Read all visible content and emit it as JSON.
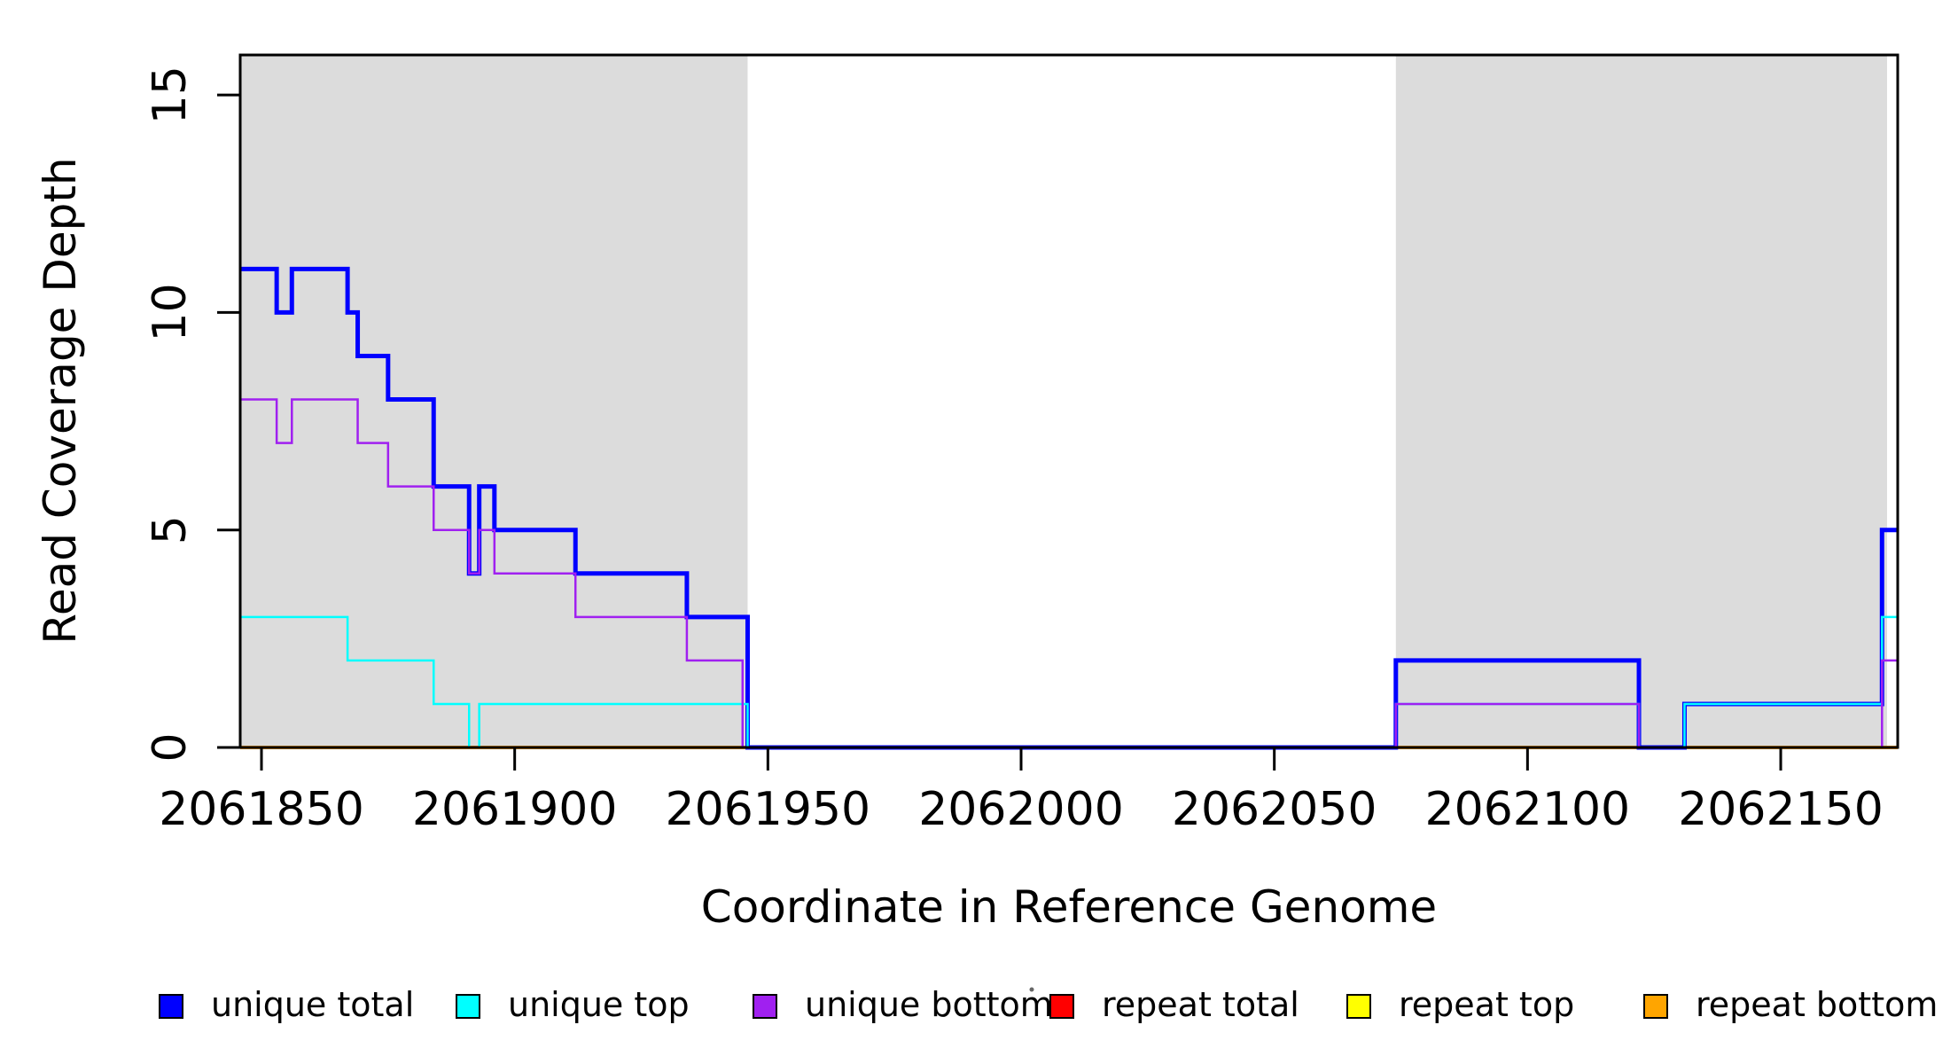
{
  "figure": {
    "xlabel": "Coordinate in Reference Genome",
    "ylabel": "Read Coverage Depth"
  },
  "chart_data": {
    "type": "line",
    "subtype": "step",
    "title": "",
    "xlabel": "Coordinate in Reference Genome",
    "ylabel": "Read Coverage Depth",
    "xlim": [
      2061845.8,
      2062173.1
    ],
    "ylim": [
      0,
      15.92
    ],
    "x_ticks": [
      2061850,
      2061900,
      2061950,
      2062000,
      2062050,
      2062100,
      2062150
    ],
    "y_ticks": [
      0,
      5,
      10,
      15
    ],
    "grid": false,
    "background_color": "#ffffff",
    "shade_color": "#DCDCDC",
    "shaded_regions": [
      {
        "x0": 2061846,
        "x1": 2061946
      },
      {
        "x0": 2062074,
        "x1": 2062171
      }
    ],
    "series": [
      {
        "name": "repeat total",
        "color": "#FF0000",
        "width": 2.5,
        "points": [
          [
            2061845.8,
            0
          ],
          [
            2062173.1,
            0
          ]
        ]
      },
      {
        "name": "repeat top",
        "color": "#FFFF00",
        "width": 2.5,
        "points": [
          [
            2061845.8,
            0
          ],
          [
            2062173.1,
            0
          ]
        ]
      },
      {
        "name": "repeat bottom",
        "color": "#FFA500",
        "width": 4,
        "points": [
          [
            2061845.8,
            0
          ],
          [
            2062173.1,
            0
          ]
        ]
      },
      {
        "name": "unique total",
        "color": "#0000FF",
        "width": 5,
        "points": [
          [
            2061845.8,
            11
          ],
          [
            2061853,
            10
          ],
          [
            2061856,
            11
          ],
          [
            2061867,
            10
          ],
          [
            2061869,
            9
          ],
          [
            2061875,
            8
          ],
          [
            2061884,
            6
          ],
          [
            2061891,
            4
          ],
          [
            2061893,
            6
          ],
          [
            2061896,
            5
          ],
          [
            2061912,
            4
          ],
          [
            2061934,
            3
          ],
          [
            2061946,
            0
          ],
          [
            2062074,
            2
          ],
          [
            2062122,
            0
          ],
          [
            2062131,
            1
          ],
          [
            2062170,
            5
          ],
          [
            2062173.1,
            5
          ]
        ]
      },
      {
        "name": "unique top",
        "color": "#00FFFF",
        "width": 2.5,
        "points": [
          [
            2061845.8,
            3
          ],
          [
            2061867,
            2
          ],
          [
            2061884,
            1
          ],
          [
            2061891,
            0
          ],
          [
            2061893,
            1
          ],
          [
            2061946,
            0
          ],
          [
            2062074,
            1
          ],
          [
            2062122,
            0
          ],
          [
            2062131,
            1
          ],
          [
            2062170,
            3
          ],
          [
            2062173.1,
            3
          ]
        ]
      },
      {
        "name": "unique bottom",
        "color": "#A020F0",
        "width": 2.5,
        "points": [
          [
            2061845.8,
            8
          ],
          [
            2061853,
            7
          ],
          [
            2061856,
            8
          ],
          [
            2061869,
            7
          ],
          [
            2061875,
            6
          ],
          [
            2061884,
            5
          ],
          [
            2061891,
            4
          ],
          [
            2061893,
            5
          ],
          [
            2061896,
            4
          ],
          [
            2061912,
            3
          ],
          [
            2061934,
            2
          ],
          [
            2061945,
            0
          ],
          [
            2062074,
            1
          ],
          [
            2062122,
            0
          ],
          [
            2062170,
            2
          ],
          [
            2062173.1,
            2
          ]
        ]
      }
    ],
    "legend": {
      "position": "bottom",
      "entries": [
        {
          "label": "unique total",
          "color": "#0000FF"
        },
        {
          "label": "unique top",
          "color": "#00FFFF"
        },
        {
          "label": "unique bottom",
          "color": "#A020F0"
        },
        {
          "label": "repeat total",
          "color": "#FF0000"
        },
        {
          "label": "repeat top",
          "color": "#FFFF00"
        },
        {
          "label": "repeat bottom",
          "color": "#FFA500"
        }
      ]
    }
  }
}
